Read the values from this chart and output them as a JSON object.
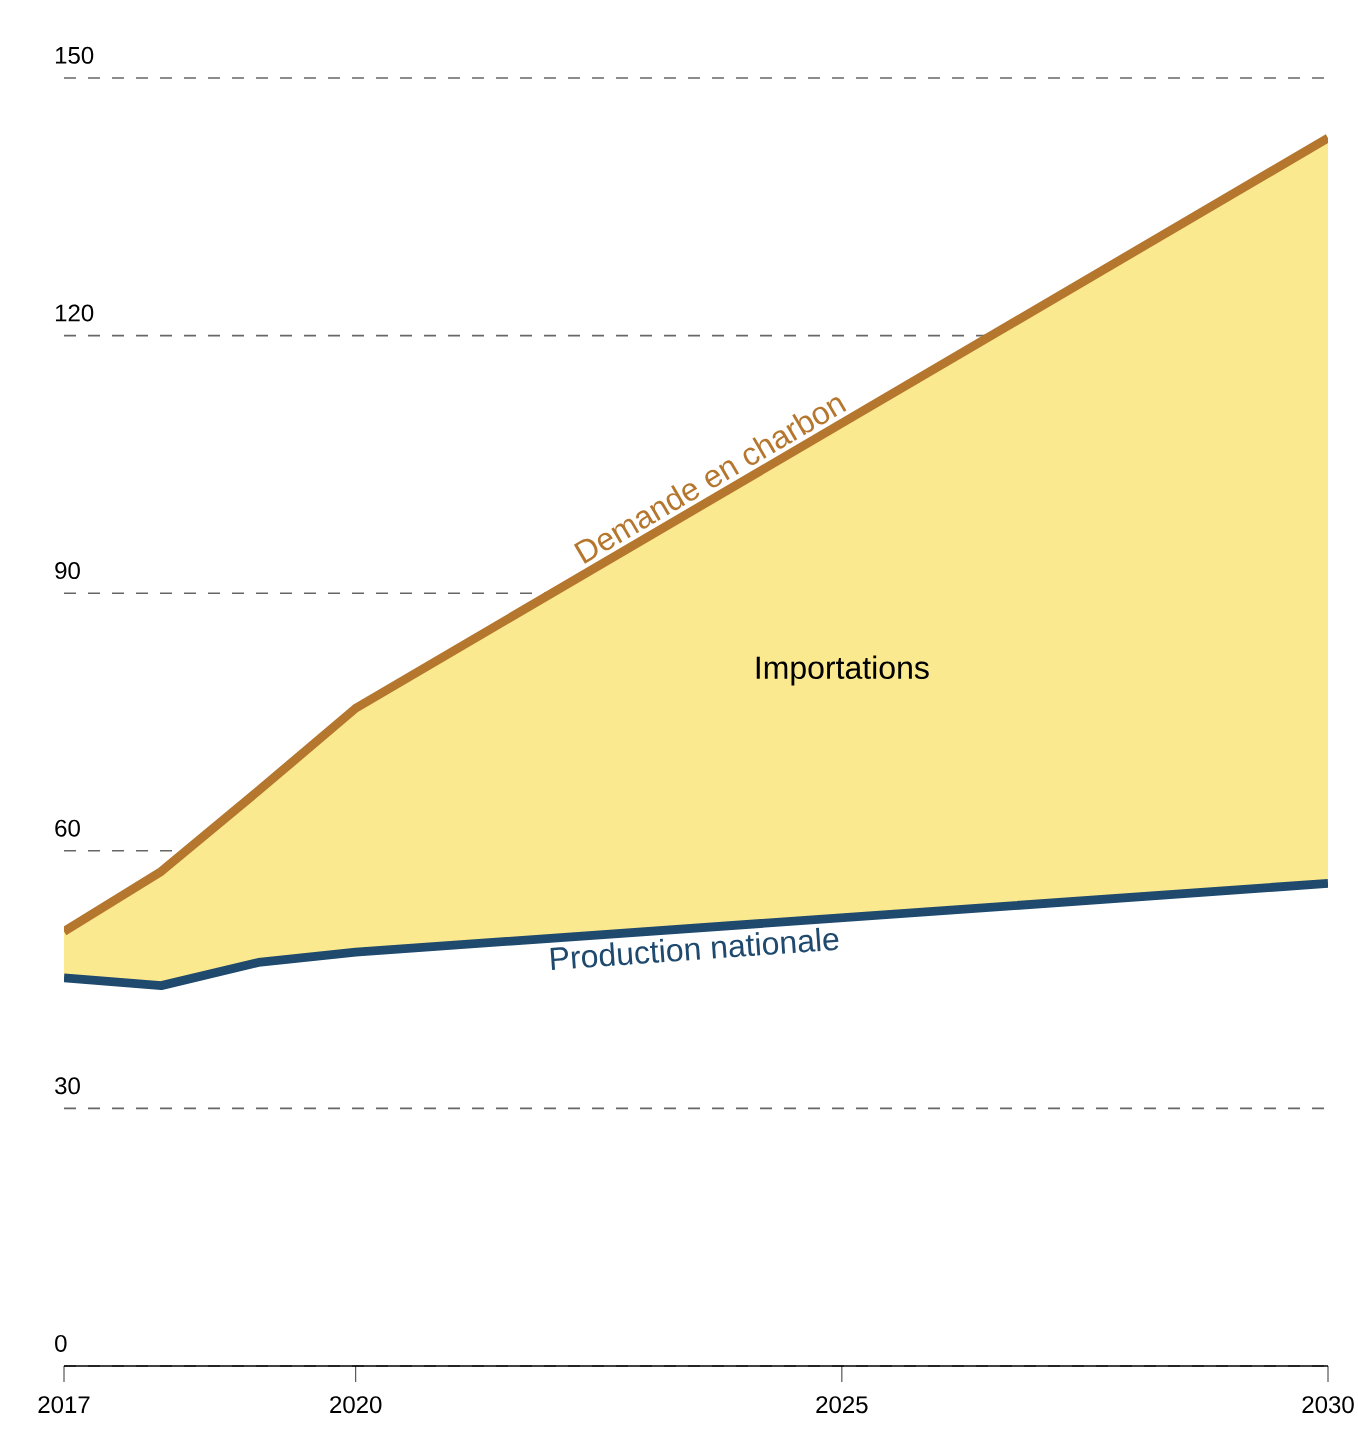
{
  "chart_data": {
    "type": "line",
    "x": [
      2017,
      2018,
      2019,
      2020,
      2030
    ],
    "series": [
      {
        "name": "Demande en charbon",
        "color": "#b5772e",
        "values": [
          50.6,
          57.6,
          67,
          76.6,
          143
        ],
        "lower": [
          45.2,
          44.3,
          47,
          48.2,
          56.2
        ],
        "upper": [
          50.6,
          57.6,
          67,
          76.6,
          143
        ]
      },
      {
        "name": "Production nationale",
        "color": "#1f4a6e",
        "values": [
          45.2,
          44.3,
          47,
          48.2,
          56.2
        ]
      }
    ],
    "annotations": [
      "Importations"
    ],
    "xlim": [
      2017,
      2030
    ],
    "xticks": [
      2017,
      2020,
      2025,
      2030
    ],
    "ylim": [
      0,
      150
    ],
    "yticks": [
      0,
      30,
      60,
      90,
      120,
      150
    ],
    "grid": "y",
    "legend": false,
    "marker": "none",
    "line_style": "solid"
  }
}
